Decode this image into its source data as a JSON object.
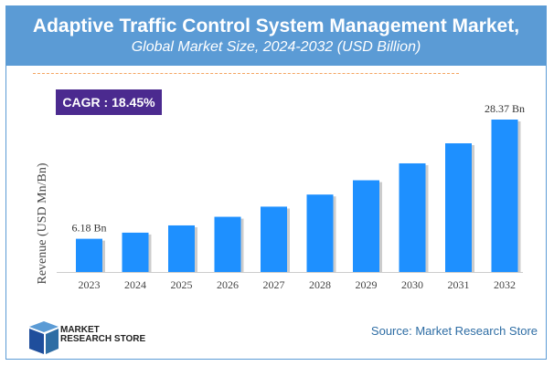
{
  "header": {
    "title": "Adaptive Traffic Control System Management Market,",
    "subtitle": "Global Market Size, 2024-2032 (USD Billion)"
  },
  "cagr": "CAGR :  18.45%",
  "source": "Source: Market Research Store",
  "logo": {
    "line1": "MARKET",
    "line2": "RESEARCH STORE"
  },
  "colors": {
    "bar": "#1e90ff",
    "header": "#5b9bd5",
    "cagr_bg": "#4b2a8f"
  },
  "chart_data": {
    "type": "bar",
    "categories": [
      "2023",
      "2024",
      "2025",
      "2026",
      "2027",
      "2028",
      "2029",
      "2030",
      "2031",
      "2032"
    ],
    "values": [
      6.18,
      7.32,
      8.67,
      10.27,
      12.16,
      14.41,
      17.07,
      20.22,
      23.95,
      28.37
    ],
    "data_labels": {
      "2023": "6.18 Bn",
      "2032": "28.37 Bn"
    },
    "ylabel": "Revenue (USD Mn/Bn)",
    "grid": false
  }
}
